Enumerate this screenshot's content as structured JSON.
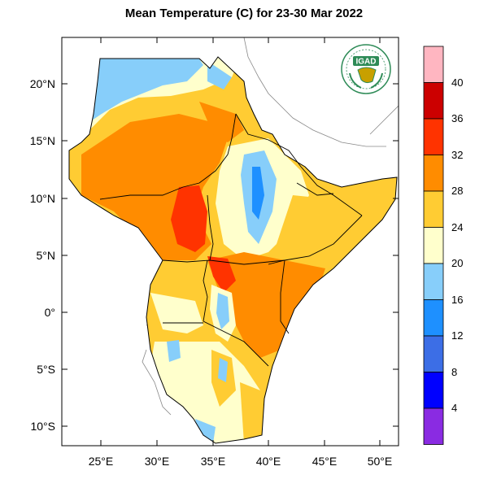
{
  "title": "Mean Temperature (C) for 23-30 Mar 2022",
  "logo_text": "IGAD",
  "map": {
    "lat_ticks": [
      "20°N",
      "15°N",
      "10°N",
      "5°N",
      "0°",
      "5°S",
      "10°S"
    ],
    "lon_ticks": [
      "25°E",
      "30°E",
      "35°E",
      "40°E",
      "45°E",
      "50°E"
    ]
  },
  "colorbar": {
    "labels": [
      "40",
      "36",
      "32",
      "28",
      "24",
      "20",
      "16",
      "12",
      "8",
      "4"
    ],
    "colors_top_to_bottom": [
      "#ffb6c1",
      "#cc0000",
      "#ff3300",
      "#ff8c00",
      "#ffcc33",
      "#ffffcc",
      "#87cefa",
      "#1e90ff",
      "#3c6ee6",
      "#0000ff",
      "#8a2be2"
    ]
  },
  "colors": {
    "very_hot": "#ff3300",
    "hot": "#ff8c00",
    "warm": "#ffcc33",
    "mild": "#ffffcc",
    "cool": "#87cefa",
    "cold": "#1e90ff"
  }
}
